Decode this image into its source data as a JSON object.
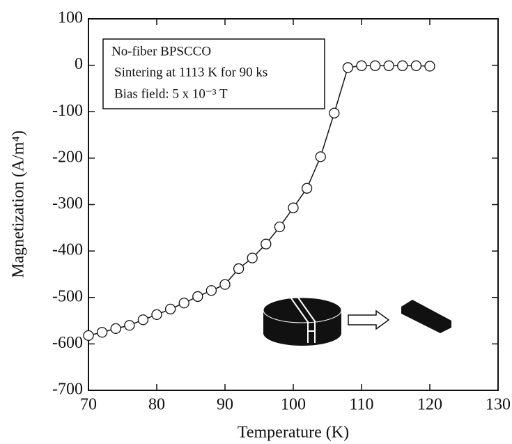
{
  "chart_data": {
    "type": "line",
    "x_label": "Temperature (K)",
    "y_label": "Magnetization (A/m⁴)",
    "annotations": [
      "No-fiber BPSCCO",
      "Sintering at 1113 K for 90 ks",
      "Bias field: 5 x 10⁻³ T"
    ],
    "x": [
      70,
      72,
      74,
      76,
      78,
      80,
      82,
      84,
      86,
      88,
      90,
      92,
      94,
      96,
      98,
      100,
      102,
      104,
      106,
      108,
      110,
      112,
      114,
      116,
      118,
      120
    ],
    "values": [
      -582,
      -575,
      -567,
      -560,
      -548,
      -537,
      -525,
      -512,
      -498,
      -485,
      -472,
      -438,
      -415,
      -385,
      -348,
      -307,
      -265,
      -197,
      -103,
      -5,
      -1,
      -1,
      -1,
      -1,
      -1,
      -2
    ],
    "color": "#111111",
    "xlim": [
      70,
      130
    ],
    "xticks": [
      70,
      80,
      90,
      100,
      110,
      120,
      130
    ],
    "ylim": [
      -700,
      100
    ],
    "yticks": [
      -700,
      -600,
      -500,
      -400,
      -300,
      -200,
      -100,
      0,
      100
    ]
  }
}
